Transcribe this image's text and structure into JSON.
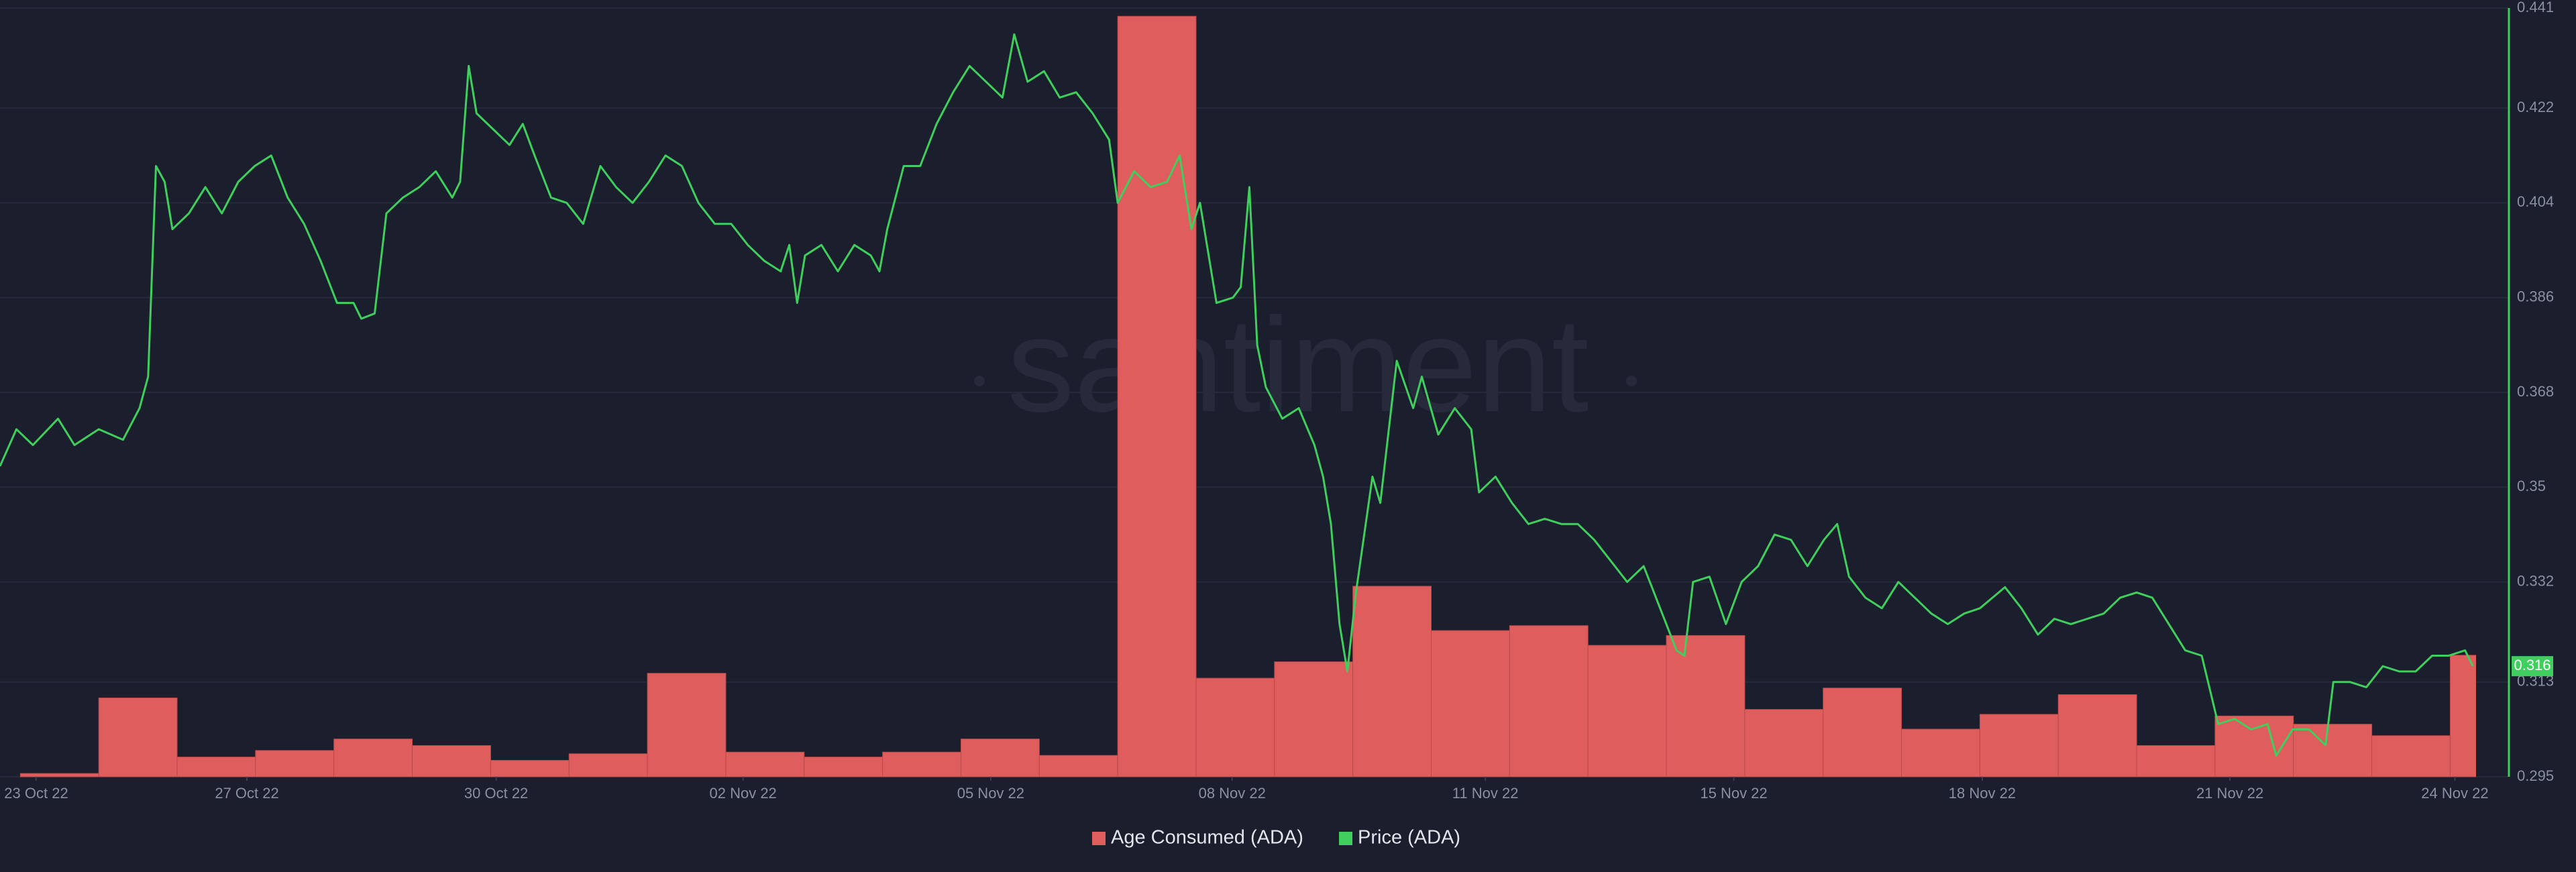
{
  "chart_data": {
    "type": "combo",
    "watermark": "santiment",
    "background": "#1b1e2d",
    "grid": true,
    "legend": "bottom",
    "xlim": [
      -0.26,
      31.33
    ],
    "xticks": [
      {
        "value": 0.2,
        "label": "23 Oct 22"
      },
      {
        "value": 2.89,
        "label": "27 Oct 22"
      },
      {
        "value": 6.07,
        "label": "30 Oct 22"
      },
      {
        "value": 9.22,
        "label": "02 Nov 22"
      },
      {
        "value": 12.38,
        "label": "05 Nov 22"
      },
      {
        "value": 15.46,
        "label": "08 Nov 22"
      },
      {
        "value": 18.69,
        "label": "11 Nov 22"
      },
      {
        "value": 21.86,
        "label": "15 Nov 22"
      },
      {
        "value": 25.03,
        "label": "18 Nov 22"
      },
      {
        "value": 28.19,
        "label": "21 Nov 22"
      },
      {
        "value": 31.06,
        "label": "24 Nov 22"
      }
    ],
    "ylim": [
      0.295,
      0.441
    ],
    "yticks": [
      0.295,
      0.313,
      0.332,
      0.35,
      0.368,
      0.386,
      0.404,
      0.422,
      0.441
    ],
    "y2lim": [
      0,
      468
    ],
    "series": [
      {
        "name": "Age Consumed (ADA)",
        "type": "bar",
        "axis": "y2",
        "color": "#e05d5d",
        "x": [
          0,
          1,
          2,
          3,
          4,
          5,
          6,
          7,
          8,
          9,
          10,
          11,
          12,
          13,
          14,
          15,
          16,
          17,
          18,
          19,
          20,
          21,
          22,
          23,
          24,
          25,
          26,
          27,
          28,
          29,
          30,
          31
        ],
        "values": [
          2,
          48,
          12,
          16,
          23,
          19,
          10,
          14,
          63,
          15,
          12,
          15,
          23,
          13,
          463,
          60,
          70,
          116,
          89,
          92,
          80,
          86,
          41,
          54,
          29,
          38,
          50,
          19,
          37,
          32,
          25,
          74
        ]
      },
      {
        "name": "Price (ADA)",
        "type": "line",
        "axis": "y",
        "color": "#3ecf5c",
        "x": [
          -0.26,
          -0.05,
          0.16,
          0.48,
          0.69,
          1.0,
          1.31,
          1.52,
          1.63,
          1.73,
          1.84,
          1.94,
          2.15,
          2.36,
          2.57,
          2.78,
          2.99,
          3.2,
          3.41,
          3.62,
          3.83,
          4.04,
          4.25,
          4.35,
          4.52,
          4.67,
          4.88,
          5.09,
          5.3,
          5.51,
          5.61,
          5.72,
          5.82,
          6.03,
          6.24,
          6.41,
          6.56,
          6.77,
          6.97,
          7.18,
          7.4,
          7.6,
          7.81,
          8.02,
          8.23,
          8.44,
          8.65,
          8.86,
          9.07,
          9.28,
          9.49,
          9.7,
          9.81,
          9.91,
          10.01,
          10.22,
          10.43,
          10.64,
          10.85,
          10.96,
          11.06,
          11.27,
          11.48,
          11.69,
          11.9,
          12.11,
          12.32,
          12.53,
          12.68,
          12.85,
          13.06,
          13.26,
          13.47,
          13.68,
          13.89,
          14.0,
          14.21,
          14.42,
          14.63,
          14.79,
          14.94,
          15.05,
          15.26,
          15.47,
          15.57,
          15.68,
          15.78,
          15.89,
          16.1,
          16.31,
          16.51,
          16.62,
          16.72,
          16.83,
          16.93,
          17.04,
          17.25,
          17.35,
          17.56,
          17.77,
          17.88,
          18.09,
          18.3,
          18.51,
          18.61,
          18.82,
          19.03,
          19.24,
          19.45,
          19.66,
          19.87,
          20.08,
          20.29,
          20.5,
          20.71,
          20.92,
          21.13,
          21.23,
          21.34,
          21.55,
          21.76,
          21.96,
          22.17,
          22.38,
          22.59,
          22.8,
          23.01,
          23.18,
          23.33,
          23.54,
          23.75,
          23.96,
          24.17,
          24.38,
          24.59,
          24.8,
          25.0,
          25.32,
          25.53,
          25.74,
          25.95,
          26.16,
          26.37,
          26.58,
          26.79,
          27.0,
          27.2,
          27.41,
          27.62,
          27.83,
          28.04,
          28.25,
          28.46,
          28.67,
          28.78,
          28.99,
          29.2,
          29.41,
          29.51,
          29.72,
          29.93,
          30.14,
          30.35,
          30.56,
          30.77,
          30.98,
          31.19,
          31.29
        ],
        "values": [
          0.354,
          0.361,
          0.358,
          0.363,
          0.358,
          0.361,
          0.359,
          0.365,
          0.371,
          0.411,
          0.408,
          0.399,
          0.402,
          0.407,
          0.402,
          0.408,
          0.411,
          0.413,
          0.405,
          0.4,
          0.393,
          0.385,
          0.385,
          0.382,
          0.383,
          0.402,
          0.405,
          0.407,
          0.41,
          0.405,
          0.408,
          0.43,
          0.421,
          0.418,
          0.415,
          0.419,
          0.413,
          0.405,
          0.404,
          0.4,
          0.411,
          0.407,
          0.404,
          0.408,
          0.413,
          0.411,
          0.404,
          0.4,
          0.4,
          0.396,
          0.393,
          0.391,
          0.396,
          0.385,
          0.394,
          0.396,
          0.391,
          0.396,
          0.394,
          0.391,
          0.399,
          0.411,
          0.411,
          0.419,
          0.425,
          0.43,
          0.427,
          0.424,
          0.436,
          0.427,
          0.429,
          0.424,
          0.425,
          0.421,
          0.416,
          0.404,
          0.41,
          0.407,
          0.408,
          0.413,
          0.399,
          0.404,
          0.385,
          0.386,
          0.388,
          0.407,
          0.377,
          0.369,
          0.363,
          0.365,
          0.358,
          0.352,
          0.343,
          0.324,
          0.315,
          0.33,
          0.352,
          0.347,
          0.374,
          0.365,
          0.371,
          0.36,
          0.365,
          0.361,
          0.349,
          0.352,
          0.347,
          0.343,
          0.344,
          0.343,
          0.343,
          0.34,
          0.336,
          0.332,
          0.335,
          0.327,
          0.319,
          0.318,
          0.332,
          0.333,
          0.324,
          0.332,
          0.335,
          0.341,
          0.34,
          0.335,
          0.34,
          0.343,
          0.333,
          0.329,
          0.327,
          0.332,
          0.329,
          0.326,
          0.324,
          0.326,
          0.327,
          0.331,
          0.327,
          0.322,
          0.325,
          0.324,
          0.325,
          0.326,
          0.329,
          0.33,
          0.329,
          0.324,
          0.319,
          0.318,
          0.305,
          0.306,
          0.304,
          0.305,
          0.299,
          0.304,
          0.304,
          0.301,
          0.313,
          0.313,
          0.312,
          0.316,
          0.315,
          0.315,
          0.318,
          0.318,
          0.319,
          0.316
        ]
      }
    ]
  }
}
